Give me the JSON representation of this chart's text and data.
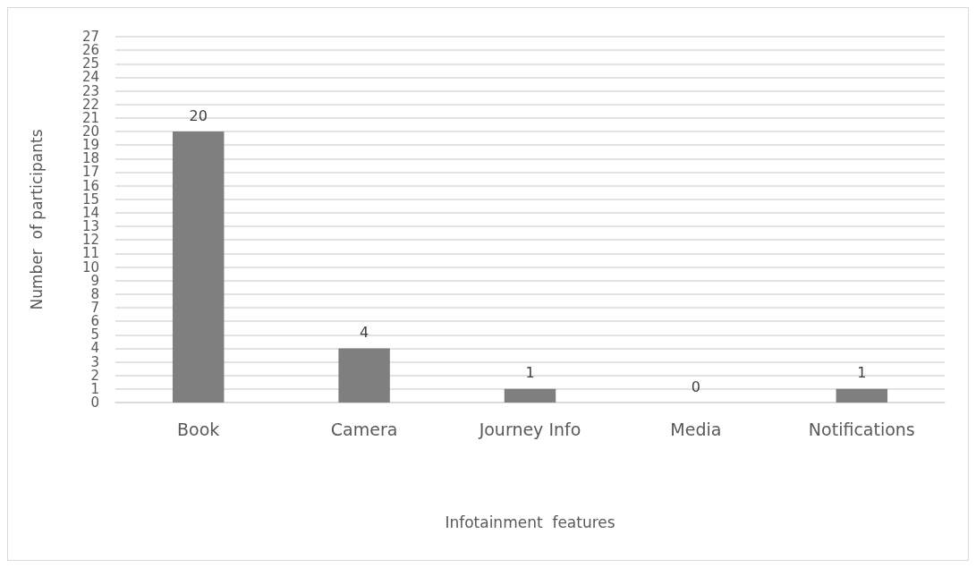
{
  "chart_data": {
    "type": "bar",
    "xlabel": "Infotainment  features",
    "ylabel": "Number  of participants",
    "categories": [
      "Book",
      "Camera",
      "Journey Info",
      "Media",
      "Notifications"
    ],
    "values": [
      20,
      4,
      1,
      0,
      1
    ],
    "color": "#7f7f7f",
    "ylim": [
      0,
      27
    ],
    "yticks": [
      0,
      1,
      2,
      3,
      4,
      5,
      6,
      7,
      8,
      9,
      10,
      11,
      12,
      13,
      14,
      15,
      16,
      17,
      18,
      19,
      20,
      21,
      22,
      23,
      24,
      25,
      26,
      27
    ],
    "grid": "y",
    "data_labels": true
  }
}
